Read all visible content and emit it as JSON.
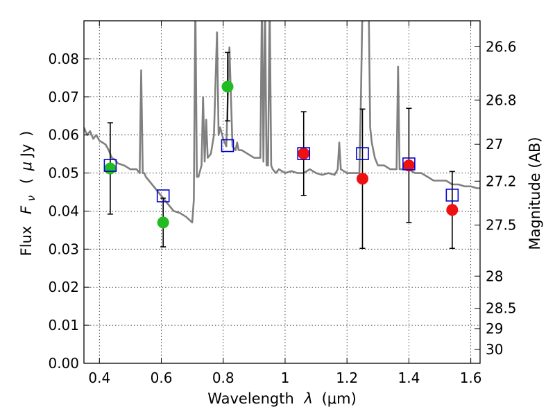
{
  "chart_data": {
    "type": "scatter",
    "x_axis": {
      "label": "Wavelength",
      "label_symbol": "λ",
      "label_unit": "(μm)",
      "range": [
        0.35,
        1.63
      ],
      "ticks": [
        0.4,
        0.6,
        0.8,
        1.0,
        1.2,
        1.4,
        1.6
      ],
      "tick_labels": [
        "0.4",
        "0.6",
        "0.8",
        "1",
        "1.2",
        "1.4",
        "1.6"
      ]
    },
    "y_axis": {
      "label": "Flux",
      "label_symbol": "F",
      "label_subscript": "ν",
      "label_unit_open": "(",
      "label_unit_mu": "μ",
      "label_unit_jy": "Jy",
      "label_unit_close": ")",
      "range": [
        0.0,
        0.09
      ],
      "ticks": [
        0.0,
        0.01,
        0.02,
        0.03,
        0.04,
        0.05,
        0.06,
        0.07,
        0.08
      ],
      "tick_labels": [
        "0.00",
        "0.01",
        "0.02",
        "0.03",
        "0.04",
        "0.05",
        "0.06",
        "0.07",
        "0.08"
      ]
    },
    "y2_axis": {
      "label": "Magnitude (AB)",
      "ticks": [
        26.6,
        26.8,
        27.0,
        27.2,
        27.5,
        28.0,
        28.5,
        29.0,
        30.0
      ],
      "tick_labels": [
        "26.6",
        "26.8",
        "27",
        "27.2",
        "27.5",
        "28",
        "28.5",
        "29",
        "30"
      ]
    },
    "grid": true,
    "series": [
      {
        "kind": "observed_optical",
        "color": "#22bb22",
        "marker": "circle",
        "x": [
          0.435,
          0.606,
          0.814
        ],
        "y": [
          0.0512,
          0.037,
          0.0727
        ],
        "error": [
          0.012,
          0.0064,
          0.009
        ]
      },
      {
        "kind": "observed_nir",
        "color": "#ee1111",
        "marker": "circle",
        "x": [
          1.06,
          1.25,
          1.4,
          1.54
        ],
        "y": [
          0.0551,
          0.0485,
          0.052,
          0.0403
        ],
        "error": [
          0.011,
          0.0183,
          0.015,
          0.0101
        ]
      },
      {
        "kind": "model_photometry",
        "color": "#0000cc",
        "marker": "open-square",
        "x": [
          0.435,
          0.606,
          0.814,
          1.06,
          1.25,
          1.4,
          1.54
        ],
        "y": [
          0.052,
          0.044,
          0.0572,
          0.0551,
          0.0551,
          0.0524,
          0.0442
        ]
      },
      {
        "kind": "model_spectrum",
        "color": "#808080",
        "line": true,
        "x": [
          0.35,
          0.36,
          0.37,
          0.38,
          0.39,
          0.4,
          0.41,
          0.42,
          0.43,
          0.44,
          0.45,
          0.46,
          0.48,
          0.5,
          0.52,
          0.53,
          0.535,
          0.54,
          0.545,
          0.55,
          0.56,
          0.58,
          0.6,
          0.62,
          0.64,
          0.66,
          0.68,
          0.7,
          0.705,
          0.71,
          0.715,
          0.72,
          0.73,
          0.735,
          0.74,
          0.745,
          0.75,
          0.76,
          0.77,
          0.78,
          0.785,
          0.79,
          0.8,
          0.81,
          0.82,
          0.83,
          0.84,
          0.845,
          0.85,
          0.86,
          0.88,
          0.9,
          0.92,
          0.925,
          0.93,
          0.935,
          0.94,
          0.945,
          0.95,
          0.955,
          0.96,
          0.97,
          0.98,
          1.0,
          1.02,
          1.04,
          1.06,
          1.08,
          1.1,
          1.12,
          1.14,
          1.16,
          1.17,
          1.175,
          1.18,
          1.19,
          1.2,
          1.22,
          1.24,
          1.245,
          1.25,
          1.255,
          1.26,
          1.27,
          1.275,
          1.28,
          1.29,
          1.3,
          1.32,
          1.34,
          1.36,
          1.365,
          1.37,
          1.38,
          1.4,
          1.42,
          1.44,
          1.46,
          1.48,
          1.5,
          1.52,
          1.54,
          1.56,
          1.58,
          1.6,
          1.62,
          1.63
        ],
        "y": [
          0.062,
          0.06,
          0.061,
          0.059,
          0.06,
          0.0585,
          0.058,
          0.0575,
          0.056,
          0.054,
          0.0535,
          0.0525,
          0.052,
          0.051,
          0.051,
          0.05,
          0.077,
          0.05,
          0.05,
          0.049,
          0.048,
          0.046,
          0.044,
          0.042,
          0.04,
          0.0395,
          0.0385,
          0.037,
          0.043,
          0.095,
          0.049,
          0.049,
          0.052,
          0.07,
          0.053,
          0.064,
          0.054,
          0.055,
          0.06,
          0.087,
          0.06,
          0.062,
          0.059,
          0.057,
          0.083,
          0.057,
          0.056,
          0.058,
          0.056,
          0.056,
          0.055,
          0.054,
          0.054,
          0.095,
          0.053,
          0.095,
          0.052,
          0.052,
          0.095,
          0.052,
          0.051,
          0.05,
          0.051,
          0.05,
          0.0505,
          0.05,
          0.05,
          0.051,
          0.05,
          0.0495,
          0.05,
          0.0495,
          0.051,
          0.058,
          0.051,
          0.0505,
          0.05,
          0.05,
          0.05,
          0.07,
          0.095,
          0.09,
          0.095,
          0.095,
          0.062,
          0.058,
          0.054,
          0.052,
          0.052,
          0.051,
          0.051,
          0.078,
          0.051,
          0.051,
          0.051,
          0.05,
          0.05,
          0.049,
          0.048,
          0.048,
          0.048,
          0.047,
          0.047,
          0.0465,
          0.0465,
          0.046,
          0.046
        ]
      }
    ]
  }
}
